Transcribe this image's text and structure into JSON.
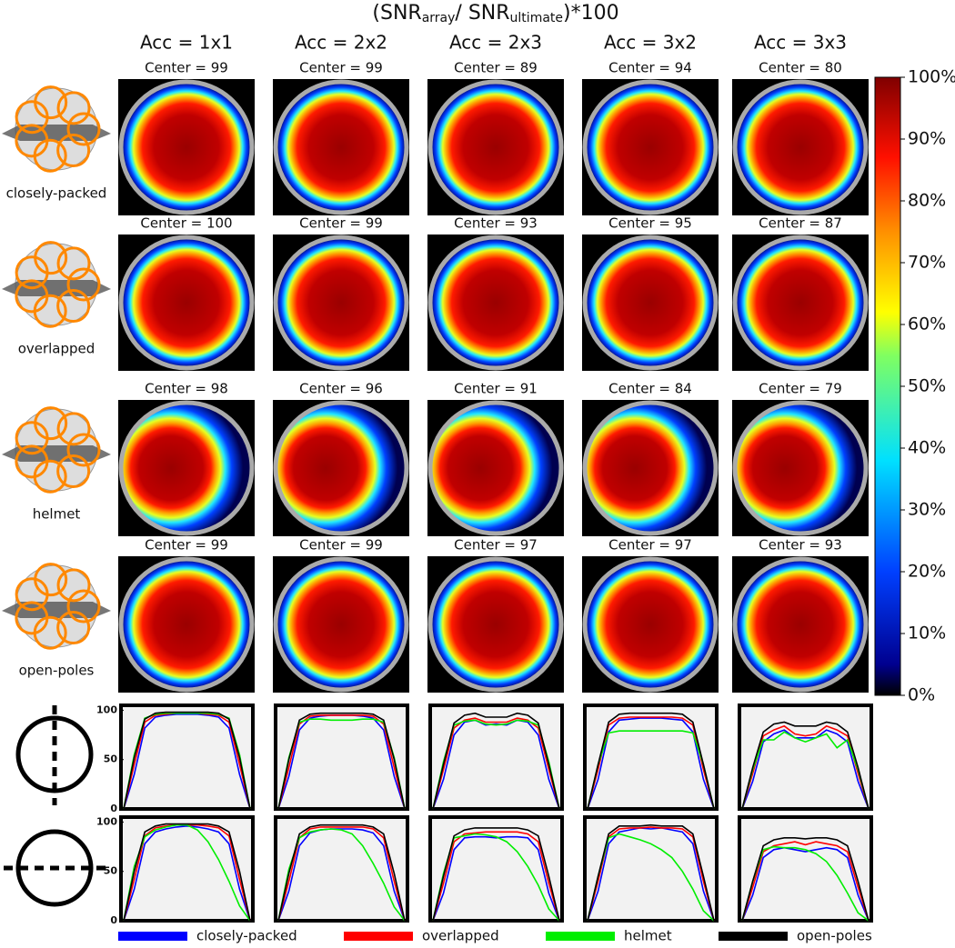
{
  "title": {
    "parts": [
      "(SNR",
      "array",
      "/ SNR",
      "ultimate",
      ")*100"
    ]
  },
  "columns": [
    "Acc = 1x1",
    "Acc = 2x2",
    "Acc = 2x3",
    "Acc = 3x2",
    "Acc = 3x3"
  ],
  "rows": [
    "closely-packed",
    "overlapped",
    "helmet",
    "open-poles"
  ],
  "centers": [
    [
      "Center = 99",
      "Center = 99",
      "Center = 89",
      "Center = 94",
      "Center = 80"
    ],
    [
      "Center = 100",
      "Center = 99",
      "Center = 93",
      "Center = 95",
      "Center = 87"
    ],
    [
      "Center = 98",
      "Center = 96",
      "Center = 91",
      "Center = 84",
      "Center = 79"
    ],
    [
      "Center = 99",
      "Center = 99",
      "Center = 97",
      "Center = 97",
      "Center = 93"
    ]
  ],
  "colorbar": {
    "clim": [
      0,
      100
    ],
    "ticks": [
      {
        "value": 0,
        "label": "0%"
      },
      {
        "value": 10,
        "label": "10%"
      },
      {
        "value": 20,
        "label": "20%"
      },
      {
        "value": 30,
        "label": "30%"
      },
      {
        "value": 40,
        "label": "40%"
      },
      {
        "value": 50,
        "label": "50%"
      },
      {
        "value": 60,
        "label": "60%"
      },
      {
        "value": 70,
        "label": "70%"
      },
      {
        "value": 80,
        "label": "80%"
      },
      {
        "value": 90,
        "label": "90%"
      },
      {
        "value": 100,
        "label": "100%"
      }
    ]
  },
  "legend": [
    {
      "name": "closely-packed",
      "color": "#0000ff"
    },
    {
      "name": "overlapped",
      "color": "#ff0000"
    },
    {
      "name": "helmet",
      "color": "#00ee00"
    },
    {
      "name": "open-poles",
      "color": "#000000"
    }
  ],
  "profile_ylim": [
    0,
    105
  ],
  "profile_yticks": [
    0,
    50,
    100
  ],
  "profiles": [
    [
      [
        [
          0,
          35,
          82,
          93,
          95,
          96,
          96,
          96,
          95,
          93,
          82,
          35,
          0
        ],
        [
          0,
          45,
          88,
          95,
          96,
          97,
          97,
          97,
          96,
          95,
          88,
          45,
          0
        ],
        [
          0,
          55,
          92,
          96,
          97,
          97,
          97,
          97,
          97,
          96,
          92,
          55,
          0
        ],
        [
          0,
          52,
          91,
          97,
          98,
          98,
          98,
          98,
          98,
          97,
          91,
          52,
          0
        ]
      ],
      [
        [
          0,
          33,
          80,
          92,
          94,
          95,
          95,
          95,
          94,
          92,
          80,
          33,
          0
        ],
        [
          0,
          42,
          86,
          94,
          95,
          95,
          95,
          95,
          95,
          94,
          86,
          42,
          0
        ],
        [
          0,
          52,
          88,
          91,
          91,
          90,
          90,
          90,
          91,
          91,
          88,
          52,
          0
        ],
        [
          0,
          50,
          90,
          96,
          97,
          97,
          97,
          97,
          97,
          96,
          90,
          50,
          0
        ]
      ],
      [
        [
          0,
          30,
          75,
          88,
          90,
          85,
          86,
          85,
          90,
          88,
          75,
          30,
          0
        ],
        [
          0,
          40,
          82,
          90,
          92,
          88,
          88,
          88,
          92,
          90,
          82,
          40,
          0
        ],
        [
          0,
          48,
          85,
          89,
          90,
          86,
          85,
          86,
          90,
          89,
          85,
          48,
          0
        ],
        [
          0,
          45,
          87,
          95,
          97,
          93,
          93,
          93,
          97,
          95,
          87,
          45,
          0
        ]
      ],
      [
        [
          0,
          30,
          78,
          90,
          91,
          92,
          92,
          92,
          91,
          90,
          78,
          30,
          0
        ],
        [
          0,
          40,
          85,
          92,
          93,
          93,
          93,
          93,
          93,
          92,
          85,
          40,
          0
        ],
        [
          0,
          45,
          77,
          79,
          79,
          79,
          79,
          79,
          79,
          79,
          77,
          45,
          0
        ],
        [
          0,
          45,
          88,
          96,
          97,
          97,
          97,
          97,
          97,
          96,
          88,
          45,
          0
        ]
      ],
      [
        [
          0,
          28,
          68,
          76,
          80,
          72,
          72,
          72,
          80,
          76,
          68,
          28,
          0
        ],
        [
          0,
          36,
          74,
          80,
          84,
          76,
          74,
          76,
          84,
          80,
          74,
          36,
          0
        ],
        [
          0,
          40,
          70,
          70,
          78,
          72,
          68,
          72,
          76,
          62,
          70,
          40,
          0
        ],
        [
          0,
          42,
          78,
          86,
          88,
          84,
          84,
          84,
          88,
          86,
          78,
          42,
          0
        ]
      ]
    ],
    [
      [
        [
          0,
          32,
          78,
          90,
          93,
          95,
          96,
          95,
          93,
          90,
          78,
          32,
          0
        ],
        [
          0,
          42,
          86,
          94,
          96,
          97,
          97,
          97,
          96,
          94,
          86,
          42,
          0
        ],
        [
          0,
          55,
          85,
          92,
          95,
          97,
          97,
          92,
          80,
          62,
          40,
          15,
          0
        ],
        [
          0,
          50,
          90,
          96,
          98,
          98,
          98,
          98,
          98,
          96,
          90,
          50,
          0
        ]
      ],
      [
        [
          0,
          30,
          76,
          89,
          92,
          93,
          93,
          93,
          92,
          89,
          76,
          30,
          0
        ],
        [
          0,
          40,
          84,
          93,
          95,
          95,
          95,
          95,
          95,
          93,
          84,
          40,
          0
        ],
        [
          0,
          52,
          84,
          90,
          92,
          93,
          92,
          88,
          76,
          58,
          38,
          14,
          0
        ],
        [
          0,
          48,
          88,
          95,
          97,
          97,
          97,
          97,
          97,
          95,
          88,
          48,
          0
        ]
      ],
      [
        [
          0,
          28,
          72,
          84,
          85,
          85,
          84,
          85,
          85,
          84,
          72,
          28,
          0
        ],
        [
          0,
          38,
          80,
          88,
          89,
          90,
          90,
          90,
          90,
          88,
          80,
          38,
          0
        ],
        [
          0,
          48,
          84,
          86,
          88,
          87,
          85,
          80,
          70,
          55,
          36,
          12,
          0
        ],
        [
          0,
          45,
          86,
          92,
          94,
          94,
          94,
          94,
          94,
          92,
          86,
          45,
          0
        ]
      ],
      [
        [
          0,
          30,
          78,
          90,
          92,
          94,
          93,
          94,
          92,
          90,
          78,
          30,
          0
        ],
        [
          0,
          40,
          85,
          93,
          94,
          94,
          95,
          94,
          94,
          93,
          85,
          40,
          0
        ],
        [
          0,
          45,
          84,
          88,
          85,
          82,
          78,
          72,
          64,
          50,
          32,
          10,
          0
        ],
        [
          0,
          45,
          88,
          96,
          96,
          96,
          97,
          96,
          96,
          96,
          88,
          45,
          0
        ]
      ],
      [
        [
          0,
          26,
          64,
          72,
          74,
          72,
          70,
          72,
          74,
          72,
          64,
          26,
          0
        ],
        [
          0,
          34,
          70,
          76,
          78,
          80,
          77,
          80,
          78,
          76,
          70,
          34,
          0
        ],
        [
          0,
          40,
          72,
          75,
          74,
          74,
          72,
          68,
          60,
          46,
          28,
          8,
          0
        ],
        [
          0,
          40,
          76,
          82,
          84,
          84,
          83,
          84,
          84,
          82,
          76,
          40,
          0
        ]
      ]
    ]
  ]
}
